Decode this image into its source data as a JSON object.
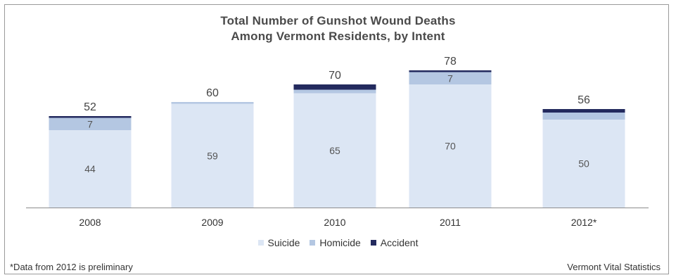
{
  "chart_data": {
    "type": "bar",
    "stacked": true,
    "title": "Total Number of Gunshot Wound Deaths",
    "subtitle": "Among Vermont Residents, by Intent",
    "categories": [
      "2008",
      "2009",
      "2010",
      "2011",
      "2012*"
    ],
    "series": [
      {
        "name": "Suicide",
        "values": [
          44,
          59,
          65,
          70,
          50
        ]
      },
      {
        "name": "Homicide",
        "values": [
          7,
          1,
          2,
          7,
          4
        ]
      },
      {
        "name": "Accident",
        "values": [
          1,
          0,
          3,
          1,
          2
        ]
      }
    ],
    "totals": [
      52,
      60,
      70,
      78,
      56
    ],
    "total_labels": [
      "52",
      "60",
      "70",
      "78",
      "56"
    ],
    "segment_labels": [
      {
        "category": "2008",
        "series": "Suicide",
        "text": "44"
      },
      {
        "category": "2008",
        "series": "Homicide",
        "text": "7"
      },
      {
        "category": "2009",
        "series": "Suicide",
        "text": "59"
      },
      {
        "category": "2010",
        "series": "Suicide",
        "text": "65"
      },
      {
        "category": "2011",
        "series": "Suicide",
        "text": "70"
      },
      {
        "category": "2011",
        "series": "Homicide",
        "text": "7"
      },
      {
        "category": "2012*",
        "series": "Suicide",
        "text": "50"
      }
    ],
    "xlabel": "",
    "ylabel": "",
    "ylim": [
      0,
      80
    ],
    "grid": false,
    "legend": "bottom",
    "colors": {
      "Suicide": "#dce6f4",
      "Homicide": "#b4c7e2",
      "Accident": "#232a5e"
    }
  },
  "footnote_left": "*Data from 2012 is preliminary",
  "footnote_right": "Vermont Vital Statistics"
}
